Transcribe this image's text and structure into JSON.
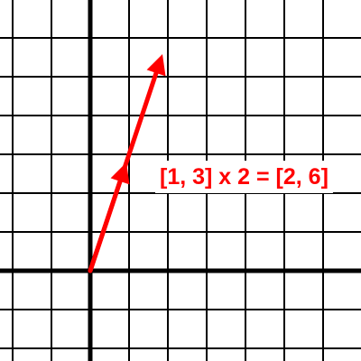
{
  "equation": {
    "text": "[1, 3] x 2 = [2, 6]"
  },
  "vectors": [
    {
      "name": "[1, 3]",
      "x": 1,
      "y": 3
    },
    {
      "name": "[2, 6]",
      "x": 2,
      "y": 6
    }
  ],
  "grid": {
    "visible": true
  },
  "colors": {
    "vector": "#ff0000",
    "label_background": "#ffffff",
    "grid_line": "#000000",
    "axes": "#000000"
  }
}
